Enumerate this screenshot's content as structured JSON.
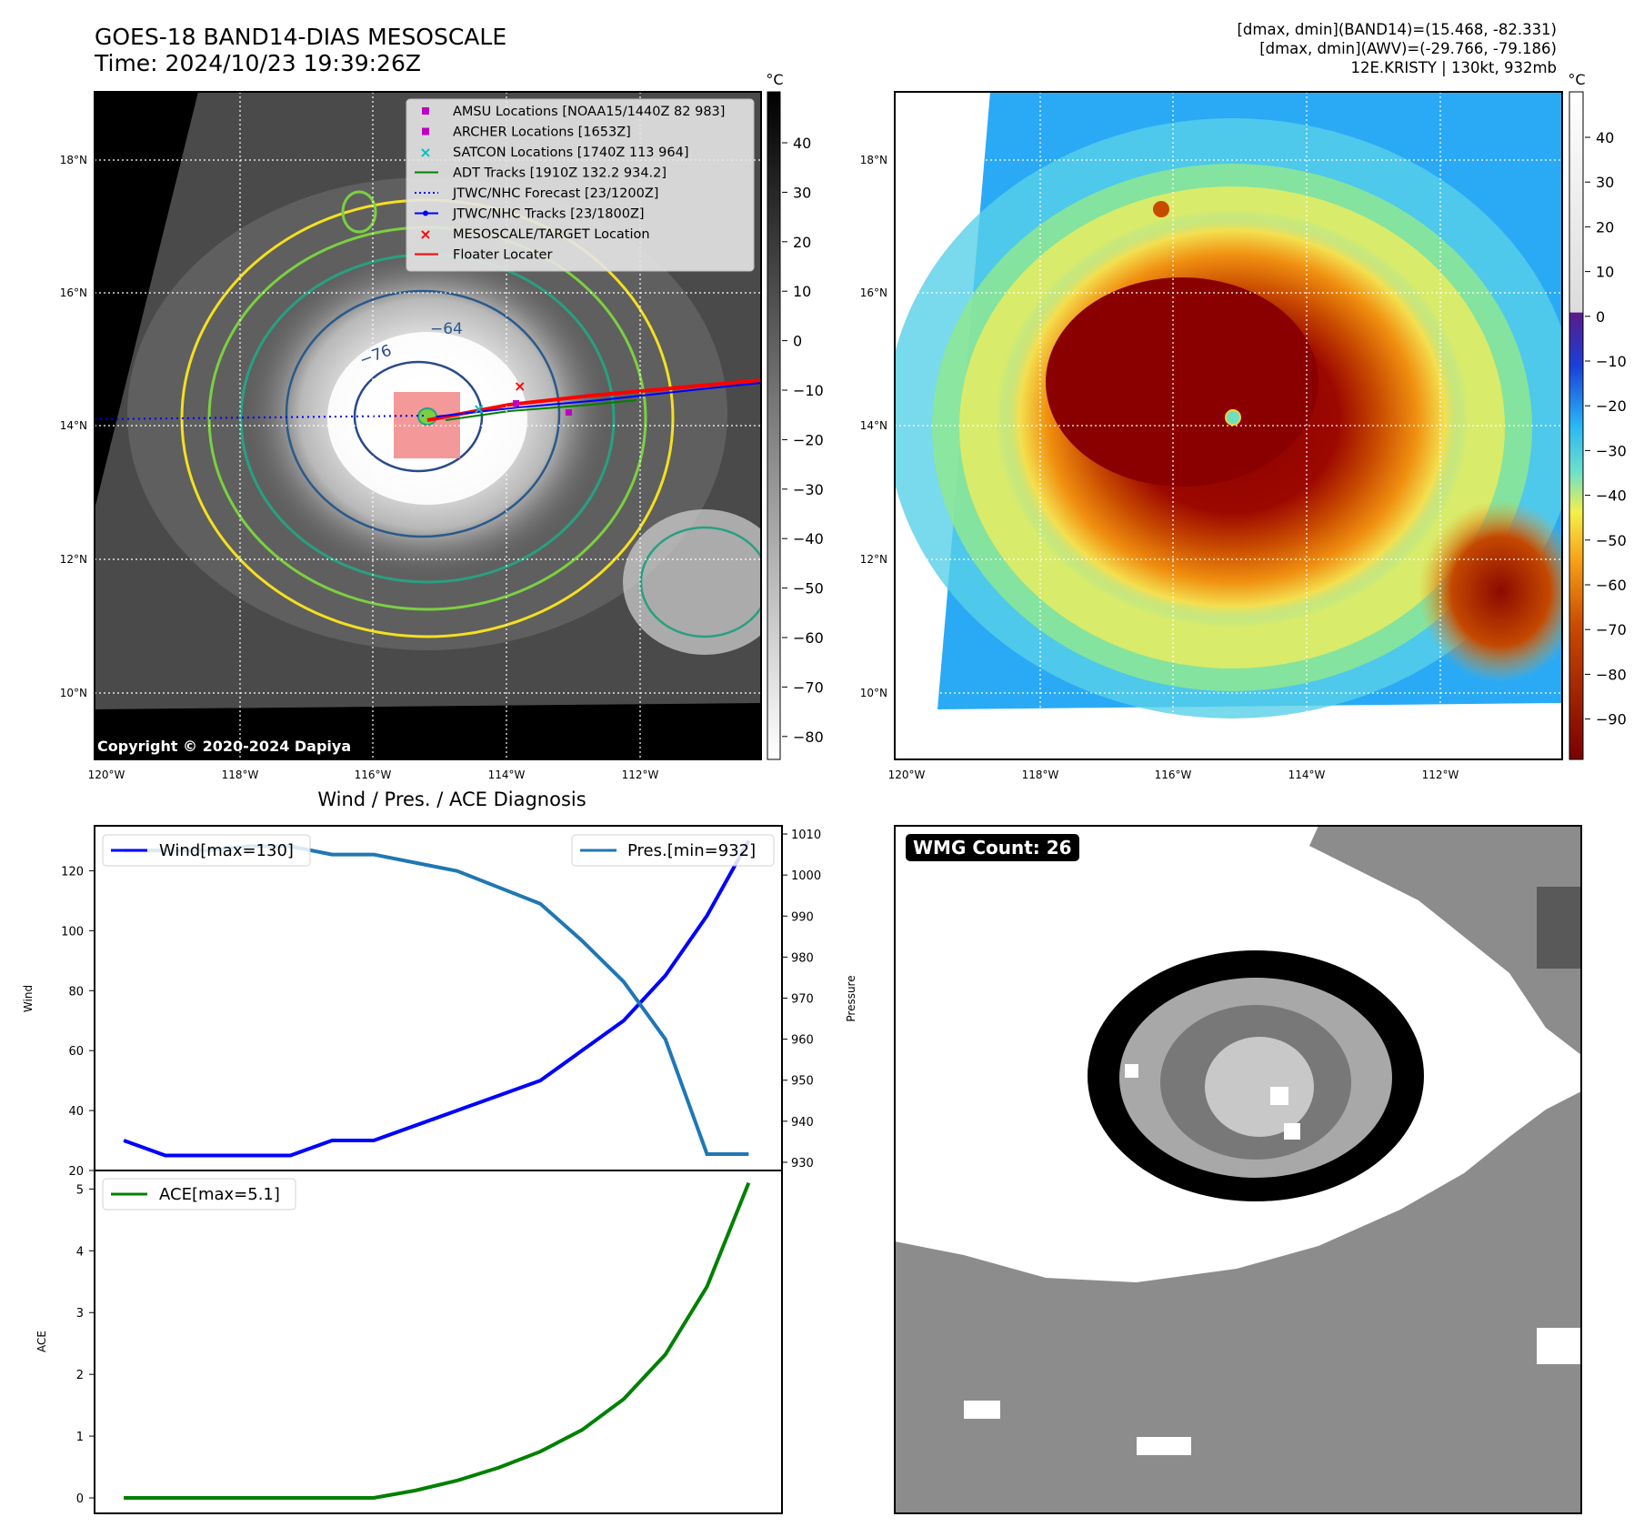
{
  "header": {
    "title_line1": "GOES-18 BAND14-DIAS MESOSCALE",
    "title_line2": "Time: 2024/10/23 19:39:26Z",
    "info_line1": "[dmax, dmin](BAND14)=(15.468, -82.331)",
    "info_line2": "[dmax, dmin](AWV)=(-29.766, -79.186)",
    "info_line3": "12E.KRISTY | 130kt, 932mb"
  },
  "map_ir": {
    "lon_ticks": [
      "120°W",
      "118°W",
      "116°W",
      "114°W",
      "112°W"
    ],
    "lat_ticks": [
      "18°N",
      "16°N",
      "14°N",
      "12°N",
      "10°N"
    ],
    "colorbar_unit": "°C",
    "colorbar_ticks": [
      "40",
      "30",
      "20",
      "10",
      "0",
      "−10",
      "−20",
      "−30",
      "−40",
      "−50",
      "−60",
      "−70",
      "−80"
    ],
    "copyright": "Copyright © 2020-2024 Dapiya",
    "contour_labels": [
      "−64",
      "−76"
    ],
    "legend": [
      {
        "label": "AMSU Locations [NOAA15/1440Z 82 983]",
        "marker": "square",
        "color": "#c000c0"
      },
      {
        "label": "ARCHER Locations [1653Z]",
        "marker": "square",
        "color": "#c000c0"
      },
      {
        "label": "SATCON Locations [1740Z 113 964]",
        "marker": "x",
        "color": "#00c0c0"
      },
      {
        "label": "ADT Tracks [1910Z 132.2 934.2]",
        "marker": "line",
        "color": "#008000"
      },
      {
        "label": "JTWC/NHC Forecast [23/1200Z]",
        "marker": "dotted",
        "color": "#0000ff"
      },
      {
        "label": "JTWC/NHC Tracks [23/1800Z]",
        "marker": "line-dot",
        "color": "#0000ff"
      },
      {
        "label": "MESOSCALE/TARGET Location",
        "marker": "x",
        "color": "#ff0000"
      },
      {
        "label": "Floater Locater",
        "marker": "line",
        "color": "#ff0000"
      }
    ]
  },
  "map_color": {
    "lon_ticks": [
      "120°W",
      "118°W",
      "116°W",
      "114°W",
      "112°W"
    ],
    "lat_ticks": [
      "18°N",
      "16°N",
      "14°N",
      "12°N",
      "10°N"
    ],
    "colorbar_unit": "°C",
    "colorbar_ticks": [
      "40",
      "30",
      "20",
      "10",
      "0",
      "−10",
      "−20",
      "−30",
      "−40",
      "−50",
      "−60",
      "−70",
      "−80",
      "−90"
    ]
  },
  "wmg": {
    "badge": "WMG Count: 26"
  },
  "chart_data": [
    {
      "type": "line",
      "title": "Wind / Pres. / ACE Diagnosis",
      "ylabel": "Wind",
      "ylabel_right": "Pressure",
      "ylim": [
        20,
        135
      ],
      "ylim_right": [
        928,
        1012
      ],
      "yticks": [
        20,
        40,
        60,
        80,
        100,
        120
      ],
      "yticks_right": [
        930,
        940,
        950,
        960,
        970,
        980,
        990,
        1000,
        1010
      ],
      "x": [
        0,
        1,
        2,
        3,
        4,
        5,
        6,
        7,
        8,
        9,
        10,
        11,
        12,
        13,
        14,
        15
      ],
      "series": [
        {
          "name": "Wind[max=130]",
          "axis": "left",
          "color": "#0000ff",
          "values": [
            30,
            25,
            25,
            25,
            25,
            30,
            30,
            35,
            40,
            45,
            50,
            60,
            70,
            85,
            105,
            130
          ]
        },
        {
          "name": "Pres.[min=932]",
          "axis": "right",
          "color": "#1f77b4",
          "values": [
            1006,
            1006,
            1006,
            1007,
            1007,
            1005,
            1005,
            1003,
            1001,
            997,
            993,
            984,
            974,
            960,
            932,
            932
          ]
        }
      ]
    },
    {
      "type": "line",
      "ylabel": "ACE",
      "ylim": [
        -0.25,
        5.3
      ],
      "yticks": [
        0,
        1,
        2,
        3,
        4,
        5
      ],
      "x": [
        0,
        1,
        2,
        3,
        4,
        5,
        6,
        7,
        8,
        9,
        10,
        11,
        12,
        13,
        14,
        15
      ],
      "series": [
        {
          "name": "ACE[max=5.1]",
          "color": "#008000",
          "values": [
            0,
            0,
            0,
            0,
            0,
            0,
            0,
            0.12,
            0.28,
            0.49,
            0.75,
            1.1,
            1.6,
            2.32,
            3.42,
            5.1
          ]
        }
      ]
    }
  ]
}
